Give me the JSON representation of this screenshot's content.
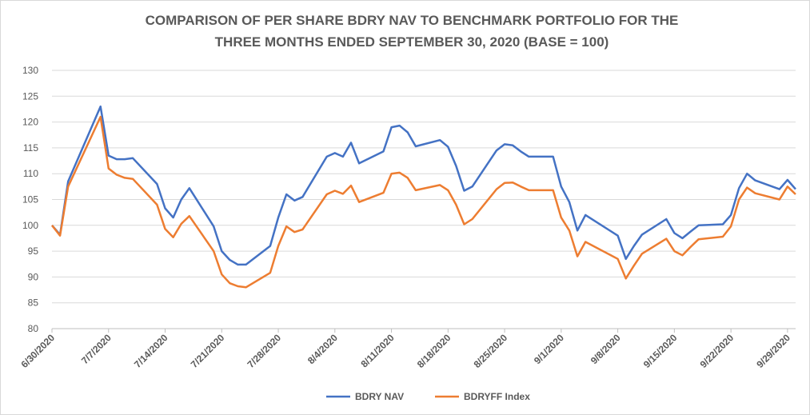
{
  "chart_data": {
    "type": "line",
    "title": [
      "COMPARISON OF PER SHARE BDRY NAV TO BENCHMARK PORTFOLIO FOR THE",
      "THREE MONTHS ENDED SEPTEMBER 30, 2020 (BASE = 100)"
    ],
    "x": [
      "6/30/2020",
      "7/1/2020",
      "7/2/2020",
      "7/6/2020",
      "7/7/2020",
      "7/8/2020",
      "7/9/2020",
      "7/10/2020",
      "7/13/2020",
      "7/14/2020",
      "7/15/2020",
      "7/16/2020",
      "7/17/2020",
      "7/20/2020",
      "7/21/2020",
      "7/22/2020",
      "7/23/2020",
      "7/24/2020",
      "7/27/2020",
      "7/28/2020",
      "7/29/2020",
      "7/30/2020",
      "7/31/2020",
      "8/3/2020",
      "8/4/2020",
      "8/5/2020",
      "8/6/2020",
      "8/7/2020",
      "8/10/2020",
      "8/11/2020",
      "8/12/2020",
      "8/13/2020",
      "8/14/2020",
      "8/17/2020",
      "8/18/2020",
      "8/19/2020",
      "8/20/2020",
      "8/21/2020",
      "8/24/2020",
      "8/25/2020",
      "8/26/2020",
      "8/27/2020",
      "8/28/2020",
      "8/31/2020",
      "9/1/2020",
      "9/2/2020",
      "9/3/2020",
      "9/4/2020",
      "9/8/2020",
      "9/9/2020",
      "9/10/2020",
      "9/11/2020",
      "9/14/2020",
      "9/15/2020",
      "9/16/2020",
      "9/17/2020",
      "9/18/2020",
      "9/21/2020",
      "9/22/2020",
      "9/23/2020",
      "9/24/2020",
      "9/25/2020",
      "9/28/2020",
      "9/29/2020",
      "9/30/2020"
    ],
    "series": [
      {
        "name": "BDRY NAV",
        "color": "#4472c4",
        "values": [
          100,
          98.2,
          108.5,
          123,
          113.5,
          112.8,
          112.8,
          113,
          108,
          103.3,
          101.5,
          105,
          107.2,
          99.8,
          95,
          93.3,
          92.4,
          92.4,
          96,
          101.5,
          106,
          104.8,
          105.5,
          113.3,
          114,
          113.3,
          116,
          112,
          114.3,
          119,
          119.3,
          118,
          115.3,
          116.5,
          115.2,
          111.5,
          106.7,
          107.5,
          114.5,
          115.7,
          115.5,
          114.3,
          113.3,
          113.3,
          107.5,
          104.5,
          99,
          102,
          98,
          93.5,
          96,
          98.2,
          101.2,
          98.5,
          97.5,
          98.8,
          100,
          100.2,
          102,
          107.2,
          110,
          108.7,
          107,
          108.8,
          107
        ]
      },
      {
        "name": "BDRYFF Index",
        "color": "#ed7d31",
        "values": [
          100,
          98,
          107.5,
          121,
          111,
          109.8,
          109.2,
          109,
          104,
          99.3,
          97.7,
          100.3,
          101.8,
          95,
          90.5,
          88.8,
          88.2,
          88,
          90.8,
          96,
          99.8,
          98.7,
          99.2,
          106,
          106.7,
          106.1,
          107.7,
          104.5,
          106.3,
          110,
          110.2,
          109.2,
          106.8,
          107.8,
          106.8,
          104,
          100.2,
          101.2,
          107,
          108.2,
          108.3,
          107.5,
          106.8,
          106.8,
          101.5,
          99,
          94,
          96.8,
          93.5,
          89.7,
          92.2,
          94.5,
          97.4,
          95,
          94.2,
          95.8,
          97.3,
          97.8,
          99.8,
          105,
          107.3,
          106.2,
          105,
          107.5,
          106
        ]
      }
    ],
    "xlim": [
      "6/30/2020",
      "9/30/2020"
    ],
    "xticks": [
      "6/30/2020",
      "7/7/2020",
      "7/14/2020",
      "7/21/2020",
      "7/28/2020",
      "8/4/2020",
      "8/11/2020",
      "8/18/2020",
      "8/25/2020",
      "9/1/2020",
      "9/8/2020",
      "9/15/2020",
      "9/22/2020",
      "9/29/2020"
    ],
    "ylim": [
      80,
      130
    ],
    "yticks": [
      80,
      85,
      90,
      95,
      100,
      105,
      110,
      115,
      120,
      125,
      130
    ],
    "grid": true,
    "legend": "bottom"
  }
}
